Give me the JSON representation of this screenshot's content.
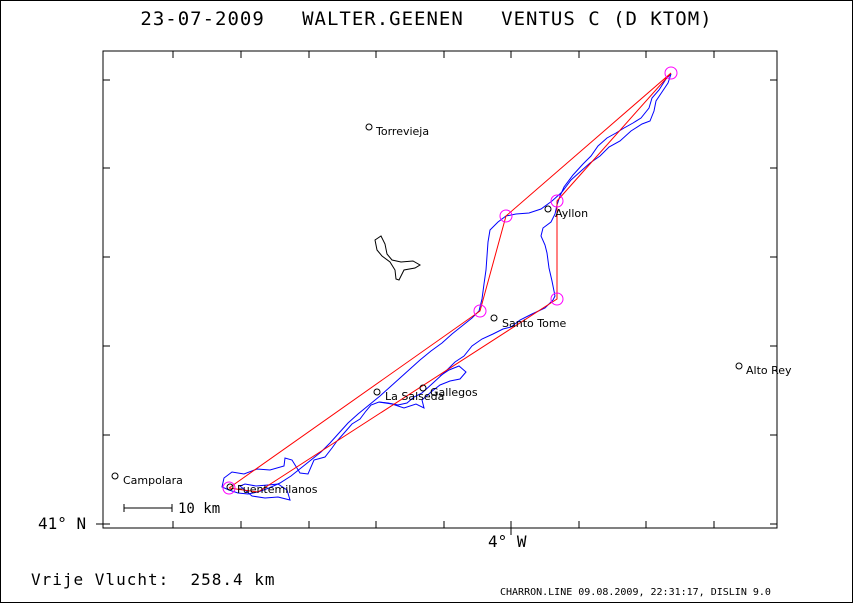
{
  "title": {
    "date": "23-07-2009",
    "pilot": "WALTER.GEENEN",
    "glider": "VENTUS C (D KTOM)"
  },
  "axes": {
    "lat_label": "41° N",
    "lon_label": "4° W"
  },
  "places": [
    {
      "id": "torrevieja",
      "name": "Torrevieja"
    },
    {
      "id": "ayllon",
      "name": "Ayllon"
    },
    {
      "id": "santo-tome",
      "name": "Santo Tome"
    },
    {
      "id": "alto-rey",
      "name": "Alto Rey"
    },
    {
      "id": "la-salseda",
      "name": "La Salseda"
    },
    {
      "id": "gallegos",
      "name": "Gallegos"
    },
    {
      "id": "campolara",
      "name": "Campolara"
    },
    {
      "id": "fuentemilanos",
      "name": "Fuentemilanos"
    }
  ],
  "scale_bar": {
    "label": "10 km"
  },
  "summary": {
    "distance_label": "Vrije Vlucht:",
    "distance_value": "258.4 km"
  },
  "footer": "CHARRON.LINE 09.08.2009, 22:31:17, DISLIN 9.0",
  "colors": {
    "task_line": "#ff0000",
    "track_line": "#0000ff",
    "turnpoint_circle": "#ff00ff",
    "frame": "#000000"
  }
}
